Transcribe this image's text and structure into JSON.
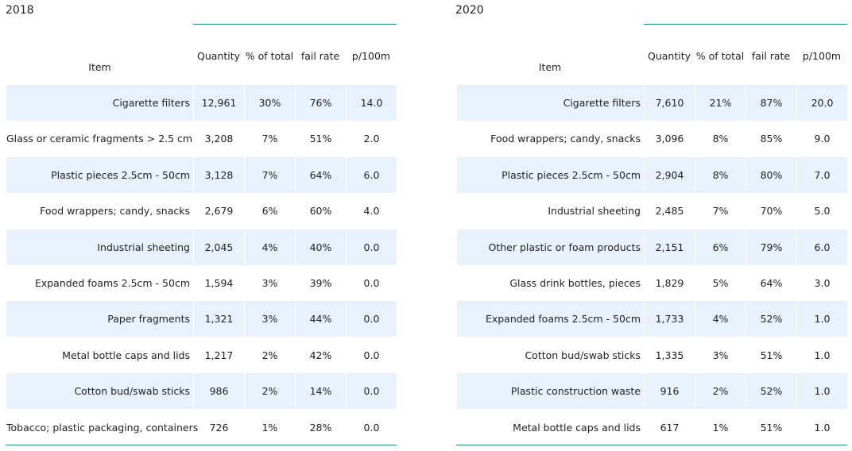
{
  "chart_data": [
    {
      "type": "table",
      "title": "2018",
      "columns": [
        "Item",
        "Quantity",
        "% of total",
        "fail rate",
        "p/100m"
      ],
      "rows": [
        [
          "Cigarette filters",
          "12,961",
          "30%",
          "76%",
          "14.0"
        ],
        [
          "Glass or ceramic fragments > 2.5 cm",
          "3,208",
          "7%",
          "51%",
          "2.0"
        ],
        [
          "Plastic pieces 2.5cm - 50cm",
          "3,128",
          "7%",
          "64%",
          "6.0"
        ],
        [
          "Food wrappers; candy, snacks",
          "2,679",
          "6%",
          "60%",
          "4.0"
        ],
        [
          "Industrial sheeting",
          "2,045",
          "4%",
          "40%",
          "0.0"
        ],
        [
          "Expanded foams 2.5cm - 50cm",
          "1,594",
          "3%",
          "39%",
          "0.0"
        ],
        [
          "Paper fragments",
          "1,321",
          "3%",
          "44%",
          "0.0"
        ],
        [
          "Metal bottle caps and lids",
          "1,217",
          "2%",
          "42%",
          "0.0"
        ],
        [
          "Cotton bud/swab sticks",
          "986",
          "2%",
          "14%",
          "0.0"
        ],
        [
          "Tobacco; plastic packaging, containers",
          "726",
          "1%",
          "28%",
          "0.0"
        ]
      ]
    },
    {
      "type": "table",
      "title": "2020",
      "columns": [
        "Item",
        "Quantity",
        "% of total",
        "fail rate",
        "p/100m"
      ],
      "rows": [
        [
          "Cigarette filters",
          "7,610",
          "21%",
          "87%",
          "20.0"
        ],
        [
          "Food wrappers; candy, snacks",
          "3,096",
          "8%",
          "85%",
          "9.0"
        ],
        [
          "Plastic pieces 2.5cm - 50cm",
          "2,904",
          "8%",
          "80%",
          "7.0"
        ],
        [
          "Industrial sheeting",
          "2,485",
          "7%",
          "70%",
          "5.0"
        ],
        [
          "Other plastic or foam products",
          "2,151",
          "6%",
          "79%",
          "6.0"
        ],
        [
          "Glass drink bottles, pieces",
          "1,829",
          "5%",
          "64%",
          "3.0"
        ],
        [
          "Expanded foams 2.5cm - 50cm",
          "1,733",
          "4%",
          "52%",
          "1.0"
        ],
        [
          "Cotton bud/swab sticks",
          "1,335",
          "3%",
          "51%",
          "1.0"
        ],
        [
          "Plastic construction waste",
          "916",
          "2%",
          "52%",
          "1.0"
        ],
        [
          "Metal bottle caps and lids",
          "617",
          "1%",
          "51%",
          "1.0"
        ]
      ]
    }
  ],
  "colors": {
    "row_shade": "#e8f2fd",
    "rule": "#1f8a8a",
    "text": "#222222"
  }
}
